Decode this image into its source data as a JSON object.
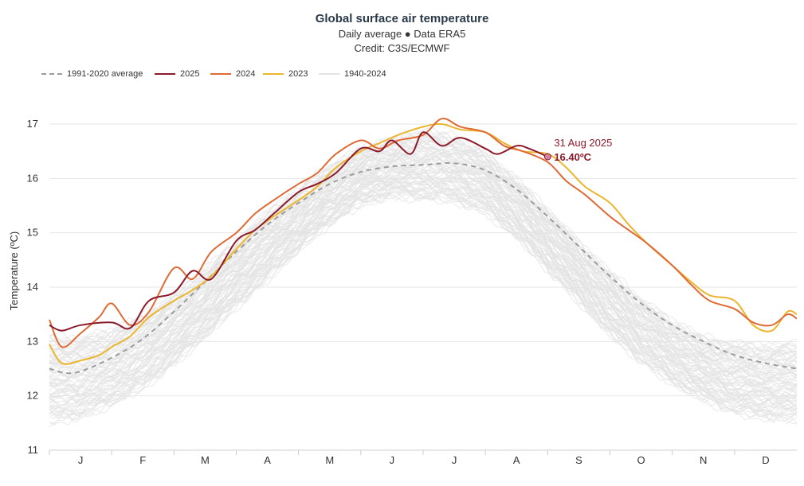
{
  "chart_data": {
    "type": "line",
    "title": "Global surface air temperature",
    "subtitle": "Daily average ● Data ERA5",
    "credit": "Credit: C3S/ECMWF",
    "xlabel": "",
    "ylabel": "Temperature (ºC)",
    "ylim": [
      11,
      17.6
    ],
    "yticks": [
      "11",
      "12",
      "13",
      "14",
      "15",
      "16",
      "17"
    ],
    "x_unit": "month of year (1 = start of Jan, 13 = end of Dec)",
    "xlim": [
      1,
      13
    ],
    "month_labels": [
      "J",
      "F",
      "M",
      "A",
      "M",
      "J",
      "J",
      "A",
      "S",
      "O",
      "N",
      "D"
    ],
    "grid": true,
    "legend_position": "top-left",
    "legend": [
      "1991-2020 average",
      "2025",
      "2024",
      "2023",
      "1940-2024"
    ],
    "series": [
      {
        "name": "1991-2020 average",
        "color": "#9b9b9b",
        "style": "dashed",
        "x": [
          1,
          1.25,
          1.5,
          2,
          2.5,
          3,
          3.5,
          4,
          4.5,
          5,
          5.5,
          6,
          6.5,
          7,
          7.5,
          8,
          8.5,
          9,
          9.5,
          10,
          10.5,
          11,
          11.5,
          12,
          12.5,
          13
        ],
        "y": [
          12.5,
          12.42,
          12.45,
          12.7,
          13.05,
          13.55,
          14.1,
          14.65,
          15.15,
          15.55,
          15.9,
          16.12,
          16.22,
          16.25,
          16.28,
          16.15,
          15.8,
          15.3,
          14.75,
          14.2,
          13.7,
          13.3,
          13.0,
          12.75,
          12.6,
          12.5
        ]
      },
      {
        "name": "2025",
        "color": "#8b1a2b",
        "style": "solid",
        "x": [
          1,
          1.2,
          1.5,
          2,
          2.3,
          2.6,
          3,
          3.3,
          3.6,
          4,
          4.3,
          4.6,
          5,
          5.3,
          5.6,
          6,
          6.3,
          6.5,
          6.8,
          7,
          7.3,
          7.6,
          8,
          8.2,
          8.5,
          8.7,
          9.0
        ],
        "y": [
          13.3,
          13.2,
          13.3,
          13.35,
          13.25,
          13.75,
          13.9,
          14.3,
          14.15,
          14.85,
          15.05,
          15.35,
          15.75,
          15.9,
          16.1,
          16.55,
          16.5,
          16.7,
          16.45,
          16.85,
          16.6,
          16.75,
          16.55,
          16.45,
          16.6,
          16.55,
          16.4
        ]
      },
      {
        "name": "2024",
        "color": "#e06a35",
        "style": "solid",
        "x": [
          1,
          1.2,
          1.5,
          1.8,
          2,
          2.3,
          2.6,
          3,
          3.3,
          3.6,
          4,
          4.3,
          4.6,
          5,
          5.3,
          5.6,
          6,
          6.3,
          6.6,
          7,
          7.3,
          7.6,
          8,
          8.3,
          8.6,
          9,
          9.3,
          9.6,
          10,
          10.3,
          10.6,
          11,
          11.3,
          11.6,
          12,
          12.3,
          12.6,
          12.85,
          13
        ],
        "y": [
          13.4,
          12.9,
          13.15,
          13.45,
          13.7,
          13.3,
          13.55,
          14.35,
          14.15,
          14.65,
          15.0,
          15.35,
          15.6,
          15.9,
          16.1,
          16.45,
          16.7,
          16.55,
          16.7,
          16.8,
          17.1,
          16.95,
          16.85,
          16.6,
          16.5,
          16.3,
          15.95,
          15.7,
          15.3,
          15.05,
          14.8,
          14.4,
          14.05,
          13.75,
          13.6,
          13.35,
          13.3,
          13.5,
          13.42
        ]
      },
      {
        "name": "2023",
        "color": "#ebb62e",
        "style": "solid",
        "x": [
          1,
          1.2,
          1.5,
          1.8,
          2,
          2.3,
          2.6,
          3,
          3.3,
          3.6,
          4,
          4.3,
          4.6,
          5,
          5.3,
          5.6,
          6,
          6.3,
          6.6,
          7,
          7.3,
          7.6,
          8,
          8.3,
          8.6,
          9,
          9.3,
          9.6,
          10,
          10.3,
          10.6,
          11,
          11.3,
          11.6,
          12,
          12.3,
          12.6,
          12.85,
          13
        ],
        "y": [
          12.95,
          12.6,
          12.65,
          12.75,
          12.9,
          13.1,
          13.45,
          13.75,
          13.95,
          14.2,
          14.7,
          15.05,
          15.3,
          15.6,
          15.85,
          16.2,
          16.5,
          16.65,
          16.8,
          16.95,
          17.0,
          16.9,
          16.85,
          16.65,
          16.5,
          16.45,
          16.2,
          15.85,
          15.55,
          15.15,
          14.8,
          14.4,
          14.1,
          13.85,
          13.75,
          13.3,
          13.2,
          13.55,
          13.5
        ]
      }
    ],
    "background_band": {
      "name": "1940-2024",
      "color": "#e3e3e3",
      "x": [
        1,
        1.5,
        2,
        2.5,
        3,
        3.5,
        4,
        4.5,
        5,
        5.5,
        6,
        6.5,
        7,
        7.5,
        8,
        8.5,
        9,
        9.5,
        10,
        10.5,
        11,
        11.5,
        12,
        12.5,
        13
      ],
      "lower": [
        11.4,
        11.5,
        11.75,
        12.05,
        12.5,
        13.0,
        13.55,
        14.05,
        14.6,
        15.1,
        15.45,
        15.6,
        15.55,
        15.5,
        15.3,
        14.85,
        14.25,
        13.65,
        13.05,
        12.55,
        12.15,
        11.85,
        11.6,
        11.5,
        11.45
      ],
      "upper": [
        13.2,
        13.15,
        13.3,
        13.55,
        13.95,
        14.4,
        14.95,
        15.45,
        15.9,
        16.3,
        16.6,
        16.8,
        16.95,
        16.85,
        16.55,
        16.05,
        15.5,
        14.9,
        14.35,
        13.85,
        13.45,
        13.15,
        13.05,
        13.0,
        13.05
      ]
    },
    "annotation": {
      "date": "31 Aug 2025",
      "value": "16.40ºC",
      "x": 9.0,
      "y": 16.4
    }
  }
}
